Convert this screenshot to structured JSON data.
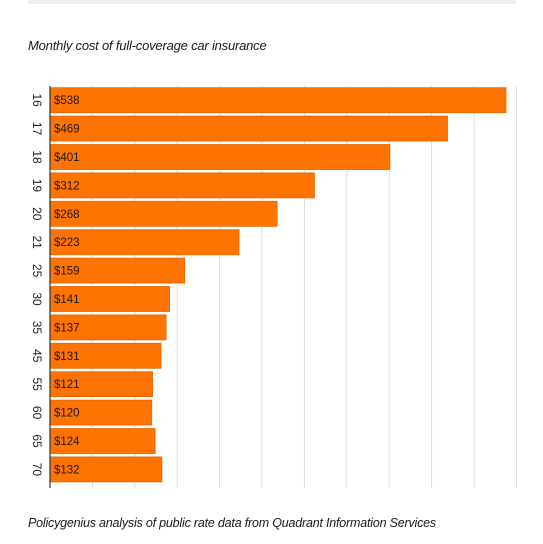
{
  "title": "Monthly cost of full-coverage car insurance",
  "source": "Policygenius analysis of public rate data from Quadrant Information Services",
  "colors": {
    "bar": "#ff7300",
    "bar_edge": "#e56700",
    "grid": "#dddddd",
    "axis": "#333333"
  },
  "chart_data": {
    "type": "bar",
    "orientation": "horizontal",
    "categories": [
      "16",
      "17",
      "18",
      "19",
      "20",
      "21",
      "25",
      "30",
      "35",
      "45",
      "55",
      "60",
      "65",
      "70"
    ],
    "values": [
      538,
      469,
      401,
      312,
      268,
      223,
      159,
      141,
      137,
      131,
      121,
      120,
      124,
      132
    ],
    "value_labels": [
      "$538",
      "$469",
      "$401",
      "$312",
      "$268",
      "$223",
      "$159",
      "$141",
      "$137",
      "$131",
      "$121",
      "$120",
      "$124",
      "$132"
    ],
    "title": "Monthly cost of full-coverage car insurance",
    "xlabel": "",
    "ylabel": "",
    "xlim": [
      0,
      550
    ],
    "grid": true,
    "legend": "none"
  }
}
